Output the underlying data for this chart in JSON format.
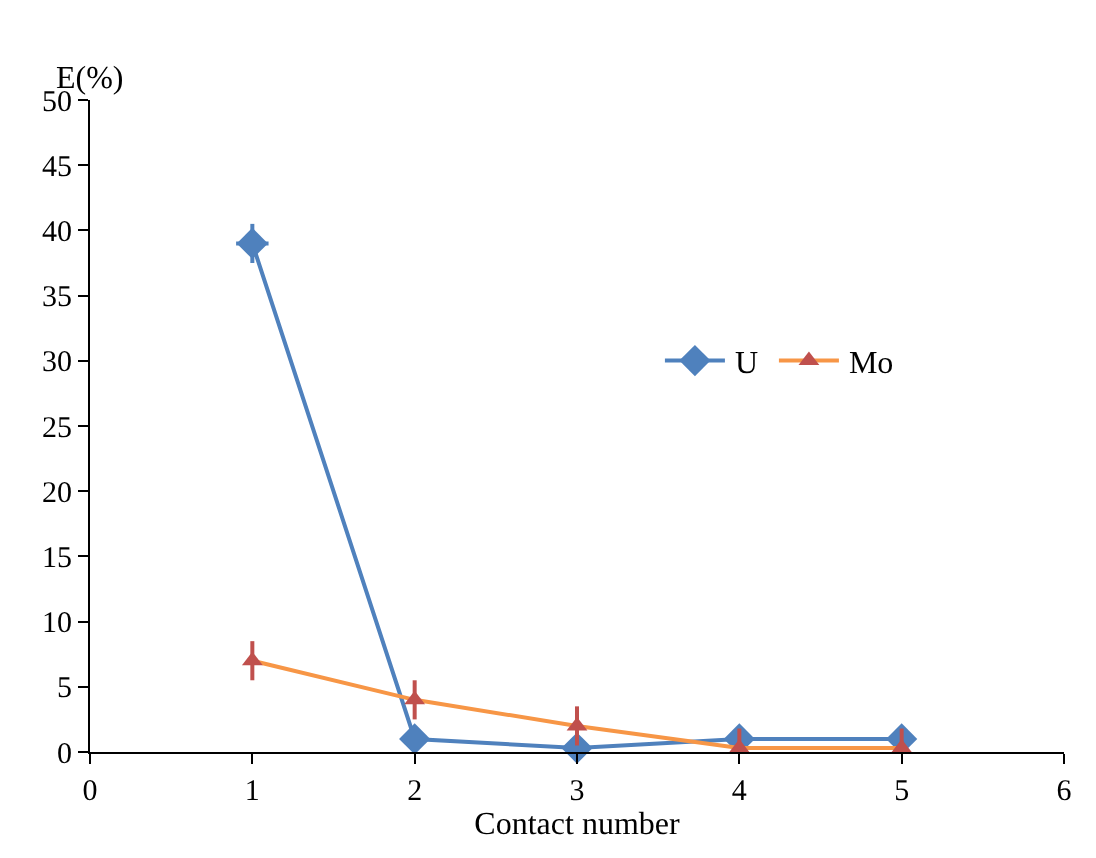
{
  "chart_data": {
    "type": "line",
    "xlabel": "Contact number",
    "ylabel": "E(%)",
    "x": [
      1,
      2,
      3,
      4,
      5
    ],
    "xlim": [
      0,
      6
    ],
    "xticks": [
      0,
      1,
      2,
      3,
      4,
      5,
      6
    ],
    "ylim": [
      0,
      50
    ],
    "yticks": [
      0,
      5,
      10,
      15,
      20,
      25,
      30,
      35,
      40,
      45,
      50
    ],
    "legend": "right",
    "line_style": "solid",
    "series": [
      {
        "name": "U",
        "color": "#4f81bd",
        "marker": "diamond",
        "values": [
          39,
          1,
          0.3,
          1,
          1
        ],
        "errors": [
          1.5,
          null,
          null,
          null,
          null
        ],
        "xerrors": [
          0.1,
          null,
          null,
          null,
          null
        ]
      },
      {
        "name": "Mo",
        "color": "#f79646",
        "marker": "triangle",
        "colors": [
          "#c0504d",
          "#c0504d",
          "#c0504d",
          "#c0504d",
          "#c0504d"
        ],
        "values": [
          7,
          4,
          2,
          0.3,
          0.3
        ],
        "errors": [
          1.5,
          1.5,
          1.5,
          1.5,
          1.5
        ]
      }
    ]
  }
}
